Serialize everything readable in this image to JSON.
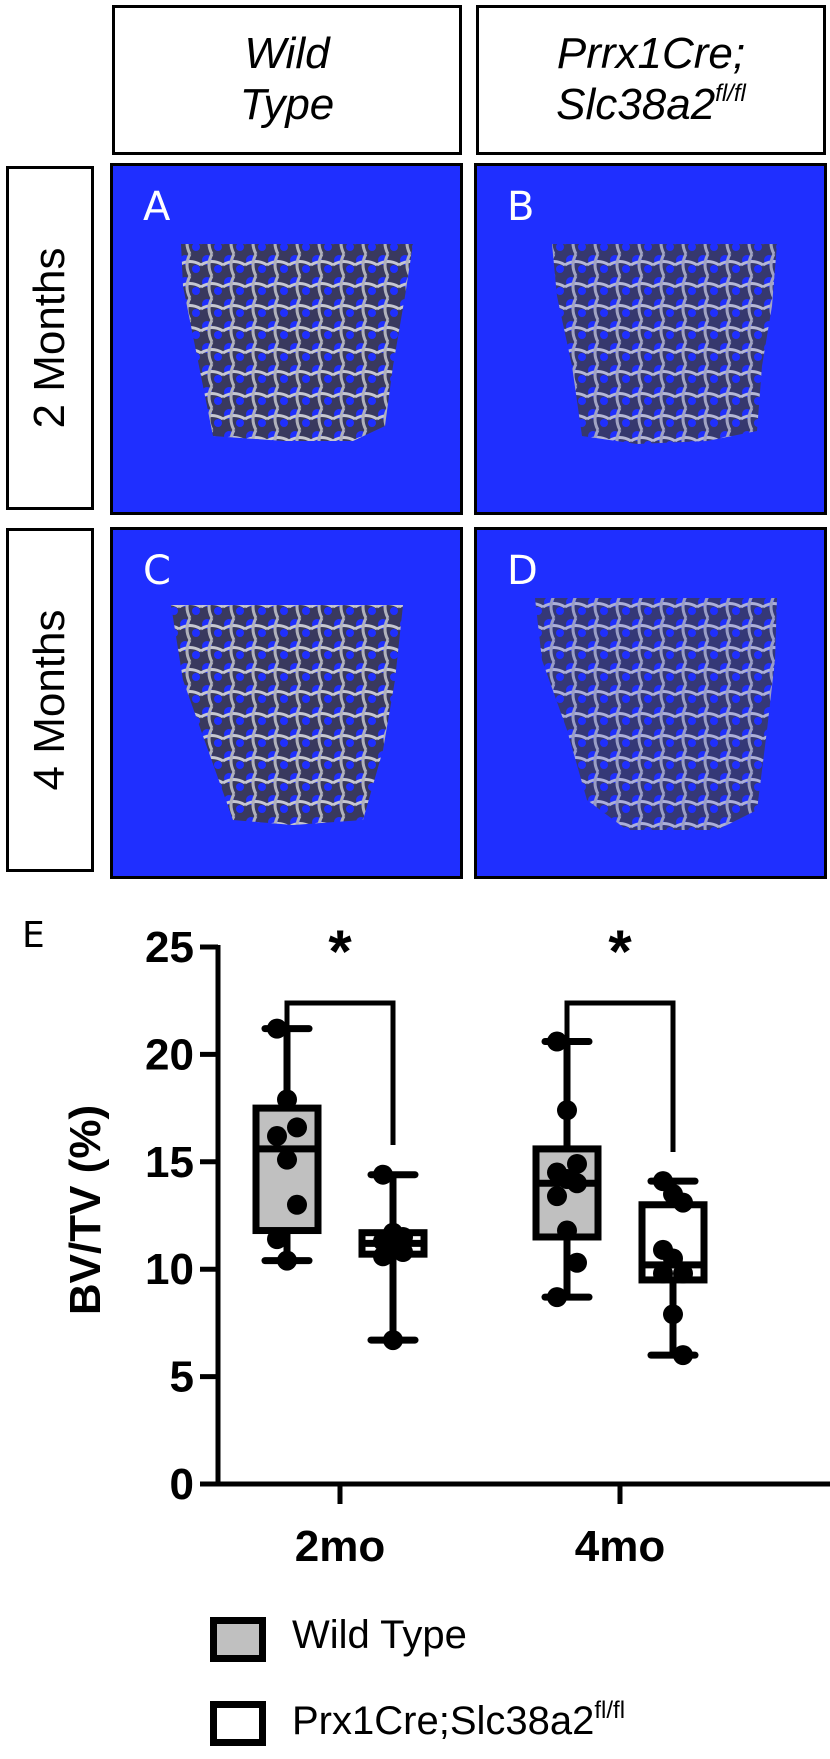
{
  "figure": {
    "column_headers": [
      {
        "line1": "Wild",
        "line2": "Type",
        "sup": ""
      },
      {
        "line1": "Prrx1Cre;",
        "line2": "Slc38a2",
        "sup": "fl/fl"
      }
    ],
    "row_headers": [
      "2 Months",
      "4 Months"
    ],
    "panels": [
      {
        "letter": "A",
        "group": "Wild Type",
        "age": "2 Months"
      },
      {
        "letter": "B",
        "group": "Prrx1Cre;Slc38a2fl/fl",
        "age": "2 Months"
      },
      {
        "letter": "C",
        "group": "Wild Type",
        "age": "4 Months"
      },
      {
        "letter": "D",
        "group": "Prrx1Cre;Slc38a2fl/fl",
        "age": "4 Months"
      }
    ],
    "panel_background": "#1f2fff",
    "chart_panel_letter": "E"
  },
  "legend": {
    "items": [
      {
        "label": "Wild Type",
        "sup": "",
        "fill": "#c0c0c0"
      },
      {
        "label": "Prx1Cre;Slc38a2",
        "sup": "fl/fl",
        "fill": "#ffffff"
      }
    ]
  },
  "chart_data": {
    "type": "box",
    "title": "",
    "xlabel": "",
    "ylabel": "BV/TV (%)",
    "categories": [
      "2mo",
      "4mo"
    ],
    "ylim": [
      0,
      25
    ],
    "yticks": [
      0,
      5,
      10,
      15,
      20,
      25
    ],
    "grid": false,
    "legend_position": "bottom",
    "series": [
      {
        "name": "Wild Type",
        "fill": "#c0c0c0",
        "boxes": [
          {
            "category": "2mo",
            "min": 10.4,
            "q1": 11.8,
            "median": 15.6,
            "q3": 17.5,
            "max": 21.2,
            "points": [
              21.2,
              17.9,
              16.6,
              16.2,
              15.1,
              13.0,
              11.4,
              10.4
            ]
          },
          {
            "category": "4mo",
            "min": 8.7,
            "q1": 11.5,
            "median": 14.0,
            "q3": 15.6,
            "max": 20.6,
            "points": [
              20.6,
              17.4,
              14.9,
              14.5,
              14.2,
              14.0,
              13.4,
              11.8,
              10.3,
              8.7
            ]
          }
        ]
      },
      {
        "name": "Prx1Cre;Slc38a2fl/fl",
        "fill": "#ffffff",
        "boxes": [
          {
            "category": "2mo",
            "min": 6.7,
            "q1": 10.7,
            "median": 11.2,
            "q3": 11.7,
            "max": 14.4,
            "points": [
              14.4,
              11.7,
              11.5,
              11.3,
              11.0,
              10.8,
              10.6,
              6.7
            ]
          },
          {
            "category": "4mo",
            "min": 6.0,
            "q1": 9.5,
            "median": 10.2,
            "q3": 13.0,
            "max": 14.1,
            "points": [
              14.1,
              13.5,
              13.1,
              10.9,
              10.5,
              9.8,
              9.8,
              7.9,
              6.0
            ]
          }
        ]
      }
    ],
    "annotations": [
      {
        "type": "significance",
        "category": "2mo",
        "text": "*",
        "between": [
          "Wild Type",
          "Prx1Cre;Slc38a2fl/fl"
        ]
      },
      {
        "type": "significance",
        "category": "4mo",
        "text": "*",
        "between": [
          "Wild Type",
          "Prx1Cre;Slc38a2fl/fl"
        ]
      }
    ]
  }
}
